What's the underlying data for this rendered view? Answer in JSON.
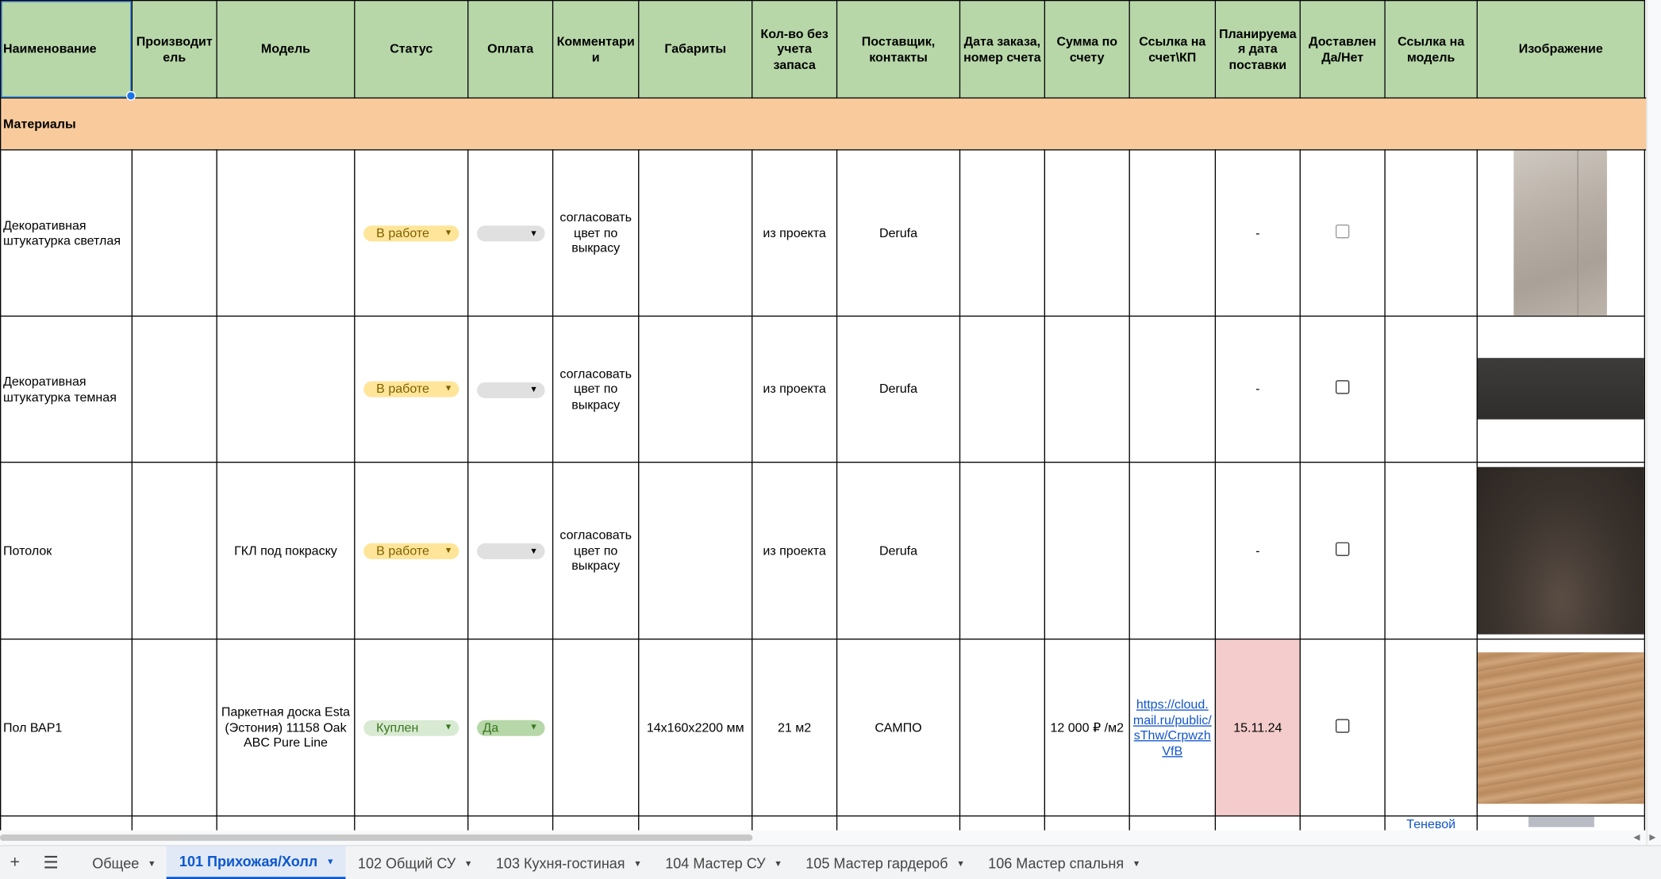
{
  "columns": [
    "Наименование",
    "Производит ель",
    "Модель",
    "Статус",
    "Оплата",
    "Комментари и",
    "Габариты",
    "Кол-во без учета запаса",
    "Поставщик, контакты",
    "Дата заказа, номер счета",
    "Сумма по счету",
    "Ссылка на счет\\КП",
    "Планируема я дата поставки",
    "Доставлен Да/Нет",
    "Ссылка на модель",
    "Изображение"
  ],
  "section": {
    "title": "Материалы"
  },
  "rows": [
    {
      "name": "Декоративная штукатурка светлая",
      "maker": "",
      "model": "",
      "status": "В работе",
      "payment": "",
      "comment": "согласовать цвет по выкрасу",
      "dims": "",
      "qty": "из проекта",
      "supplier": "Derufa",
      "order": "",
      "sum": "",
      "invoice_link": "",
      "planned_date": "-",
      "delivered": false,
      "model_link": "",
      "image": "plaster-light"
    },
    {
      "name": "Декоративная штукатурка темная",
      "maker": "",
      "model": "",
      "status": "В работе",
      "payment": "",
      "comment": "согласовать цвет по выкрасу",
      "dims": "",
      "qty": "из проекта",
      "supplier": "Derufa",
      "order": "",
      "sum": "",
      "invoice_link": "",
      "planned_date": "-",
      "delivered": false,
      "model_link": "",
      "image": "plaster-dark"
    },
    {
      "name": "Потолок",
      "maker": "",
      "model": "ГКЛ под покраску",
      "status": "В работе",
      "payment": "",
      "comment": "согласовать цвет по выкрасу",
      "dims": "",
      "qty": "из проекта",
      "supplier": "Derufa",
      "order": "",
      "sum": "",
      "invoice_link": "",
      "planned_date": "-",
      "delivered": false,
      "model_link": "",
      "image": "ceiling"
    },
    {
      "name": "Пол ВАР1",
      "maker": "",
      "model": "Паркетная доска Esta (Эстония) 11158 Oak ABC Pure Line",
      "status": "Куплен",
      "payment": "Да",
      "comment": "",
      "dims": "14x160x2200 мм",
      "qty": "21 м2",
      "supplier": "САМПО",
      "order": "",
      "sum": "12 000 ₽ /м2",
      "invoice_link": "https://cloud.mail.ru/public/sThw/CrpwzhVfB",
      "planned_date": "15.11.24",
      "delivered": false,
      "model_link": "",
      "image": "wood-floor"
    }
  ],
  "partial_row": {
    "model_link": "Теневой"
  },
  "colors": {
    "header_bg": "#b7d7a8",
    "section_bg": "#f9cb9c",
    "status_working": "#ffe599",
    "status_bought": "#d9ead3",
    "date_overdue": "#f4cccc"
  },
  "tabs": [
    {
      "label": "Общее",
      "active": false
    },
    {
      "label": "101 Прихожая/Холл",
      "active": true
    },
    {
      "label": "102 Общий СУ",
      "active": false
    },
    {
      "label": "103 Кухня-гостиная",
      "active": false
    },
    {
      "label": "104 Мастер СУ",
      "active": false
    },
    {
      "label": "105 Мастер гардероб",
      "active": false
    },
    {
      "label": "106 Мастер спальня",
      "active": false
    }
  ],
  "icons": {
    "add_sheet": "plus-icon",
    "all_sheets": "menu-icon"
  }
}
